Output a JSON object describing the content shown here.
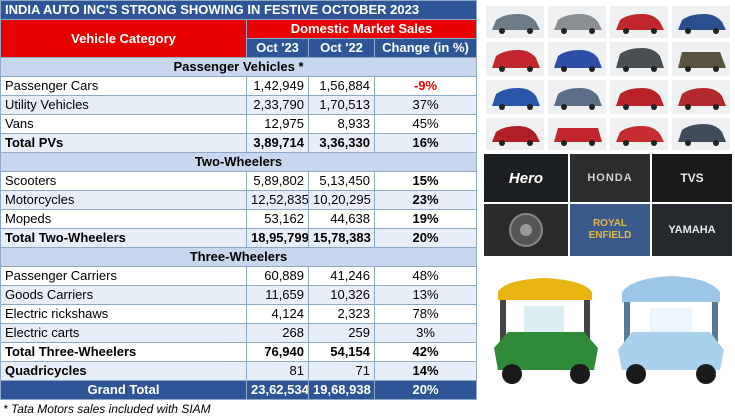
{
  "title": "INDIA AUTO INC'S STRONG SHOWING IN FESTIVE OCTOBER 2023",
  "headers": {
    "category": "Vehicle Category",
    "group": "Domestic Market Sales",
    "col1": "Oct '23",
    "col2": "Oct '22",
    "col3": "Change (in %)"
  },
  "sections": {
    "pv": "Passenger Vehicles *",
    "tw": "Two-Wheelers",
    "thw": "Three-Wheelers"
  },
  "rows": {
    "passenger_cars": [
      "Passenger Cars",
      "1,42,949",
      "1,56,884",
      "-9%"
    ],
    "utility_vehicles": [
      "Utility Vehicles",
      "2,33,790",
      "1,70,513",
      "37%"
    ],
    "vans": [
      "Vans",
      "12,975",
      "8,933",
      "45%"
    ],
    "total_pvs": [
      "Total PVs",
      "3,89,714",
      "3,36,330",
      "16%"
    ],
    "scooters": [
      "Scooters",
      "5,89,802",
      "5,13,450",
      "15%"
    ],
    "motorcycles": [
      "Motorcycles",
      "12,52,835",
      "10,20,295",
      "23%"
    ],
    "mopeds": [
      "Mopeds",
      "53,162",
      "44,638",
      "19%"
    ],
    "total_tw": [
      "Total Two-Wheelers",
      "18,95,799",
      "15,78,383",
      "20%"
    ],
    "passenger_carriers": [
      "Passenger Carriers",
      "60,889",
      "41,246",
      "48%"
    ],
    "goods_carriers": [
      "Goods Carriers",
      "11,659",
      "10,326",
      "13%"
    ],
    "electric_rickshaws": [
      "Electric rickshaws",
      "4,124",
      "2,323",
      "78%"
    ],
    "electric_carts": [
      "Electric carts",
      "268",
      "259",
      "3%"
    ],
    "total_thw": [
      "Total Three-Wheelers",
      "76,940",
      "54,154",
      "42%"
    ],
    "quadricycles": [
      "Quadricycles",
      "81",
      "71",
      "14%"
    ],
    "grand_total": [
      "Grand Total",
      "23,62,534",
      "19,68,938",
      "20%"
    ]
  },
  "footnote": "* Tata Motors sales included with SIAM",
  "brands": {
    "hero": "Hero",
    "honda": "HONDA",
    "tvs": "TVS",
    "royal_enfield": "ROYAL ENFIELD",
    "yamaha": "YAMAHA"
  },
  "colors": {
    "header_blue": "#2f5597",
    "header_red": "#e60000",
    "section_bg": "#c9d7ee",
    "alt_row": "#e8eef8"
  }
}
